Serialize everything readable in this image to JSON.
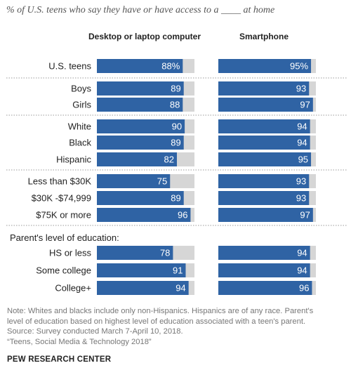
{
  "subtitle": "% of U.S. teens who say they have or have access to a ____ at home",
  "chart_data": {
    "type": "bar",
    "orientation": "horizontal",
    "layout": "two-panel",
    "xlim": [
      0,
      100
    ],
    "colors": {
      "bar": "#2f63a4",
      "track": "#d6d6d6",
      "label_text": "#ffffff",
      "divider": "#9a9a9a"
    },
    "panels": [
      {
        "key": "desktop",
        "title": "Desktop or laptop computer"
      },
      {
        "key": "smartphone",
        "title": "Smartphone"
      }
    ],
    "section_heading": "Parent's level of education:",
    "rows": [
      {
        "label": "U.S. teens",
        "group": 0,
        "desktop": 88,
        "smartphone": 95,
        "desktop_label": "88%",
        "smartphone_label": "95%"
      },
      {
        "label": "Boys",
        "group": 1,
        "desktop": 89,
        "smartphone": 93,
        "desktop_label": "89",
        "smartphone_label": "93"
      },
      {
        "label": "Girls",
        "group": 1,
        "desktop": 88,
        "smartphone": 97,
        "desktop_label": "88",
        "smartphone_label": "97"
      },
      {
        "label": "White",
        "group": 2,
        "desktop": 90,
        "smartphone": 94,
        "desktop_label": "90",
        "smartphone_label": "94"
      },
      {
        "label": "Black",
        "group": 2,
        "desktop": 89,
        "smartphone": 94,
        "desktop_label": "89",
        "smartphone_label": "94"
      },
      {
        "label": "Hispanic",
        "group": 2,
        "desktop": 82,
        "smartphone": 95,
        "desktop_label": "82",
        "smartphone_label": "95"
      },
      {
        "label": "Less than $30K",
        "group": 3,
        "desktop": 75,
        "smartphone": 93,
        "desktop_label": "75",
        "smartphone_label": "93"
      },
      {
        "label": "$30K -$74,999",
        "group": 3,
        "desktop": 89,
        "smartphone": 93,
        "desktop_label": "89",
        "smartphone_label": "93"
      },
      {
        "label": "$75K or more",
        "group": 3,
        "desktop": 96,
        "smartphone": 97,
        "desktop_label": "96",
        "smartphone_label": "97"
      },
      {
        "label": "HS or less",
        "group": 4,
        "desktop": 78,
        "smartphone": 94,
        "desktop_label": "78",
        "smartphone_label": "94"
      },
      {
        "label": "Some college",
        "group": 4,
        "desktop": 91,
        "smartphone": 94,
        "desktop_label": "91",
        "smartphone_label": "94"
      },
      {
        "label": "College+",
        "group": 4,
        "desktop": 94,
        "smartphone": 96,
        "desktop_label": "94",
        "smartphone_label": "96"
      }
    ]
  },
  "notes": {
    "line1": "Note: Whites and blacks include only non-Hispanics. Hispanics are of any race. Parent's",
    "line2": "level of education based on highest level of education associated with a teen's parent.",
    "line3": "Source: Survey conducted March 7-April 10, 2018.",
    "line4": "“Teens, Social Media & Technology 2018”"
  },
  "brand": "PEW RESEARCH CENTER"
}
